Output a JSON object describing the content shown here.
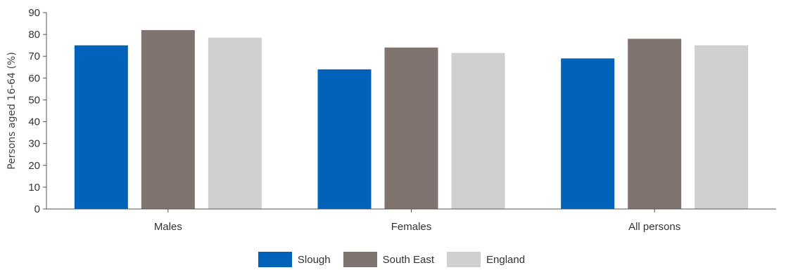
{
  "chart_data": {
    "type": "bar",
    "categories": [
      "Males",
      "Females",
      "All persons"
    ],
    "series": [
      {
        "name": "Slough",
        "color": "#0062b8",
        "values": [
          75,
          64,
          69
        ]
      },
      {
        "name": "South East",
        "color": "#807470",
        "values": [
          82,
          74,
          78
        ]
      },
      {
        "name": "England",
        "color": "#d0d0d3",
        "values": [
          78.5,
          71.5,
          75
        ]
      }
    ],
    "ylabel": "Persons aged 16-64 (%)",
    "xlabel": "",
    "ylim": [
      0,
      90
    ],
    "yticks": [
      0,
      10,
      20,
      30,
      40,
      50,
      60,
      70,
      80,
      90
    ],
    "grid": false,
    "legend_position": "bottom-center"
  }
}
